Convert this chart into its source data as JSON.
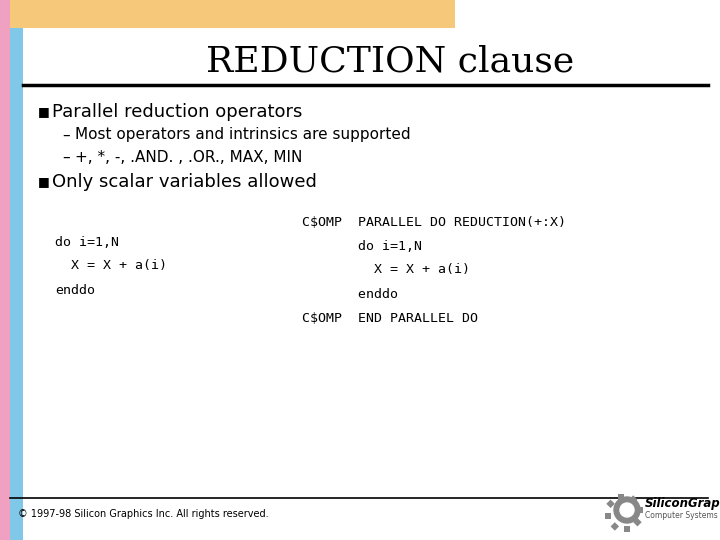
{
  "title": "REDUCTION clause",
  "bg_color": "#ffffff",
  "top_bar_color": "#f5c87a",
  "left_bar_color_pink": "#f0a0c0",
  "left_bar_color_blue": "#80c8e8",
  "bullet1": "Parallel reduction operators",
  "sub1": "Most operators and intrinsics are supported",
  "sub2": "+, *, -, .AND. , .OR., MAX, MIN",
  "bullet2": "Only scalar variables allowed",
  "code_left": [
    "do i=1,N",
    "  X = X + a(i)",
    "enddo"
  ],
  "code_right": [
    "C$OMP  PARALLEL DO REDUCTION(+:X)",
    "       do i=1,N",
    "         X = X + a(i)",
    "       enddo",
    "C$OMP  END PARALLEL DO"
  ],
  "footer": "© 1997-98 Silicon Graphics Inc. All rights reserved.",
  "top_bar_width": 455,
  "top_bar_height": 28,
  "pink_bar_width": 10,
  "blue_bar_width": 13
}
